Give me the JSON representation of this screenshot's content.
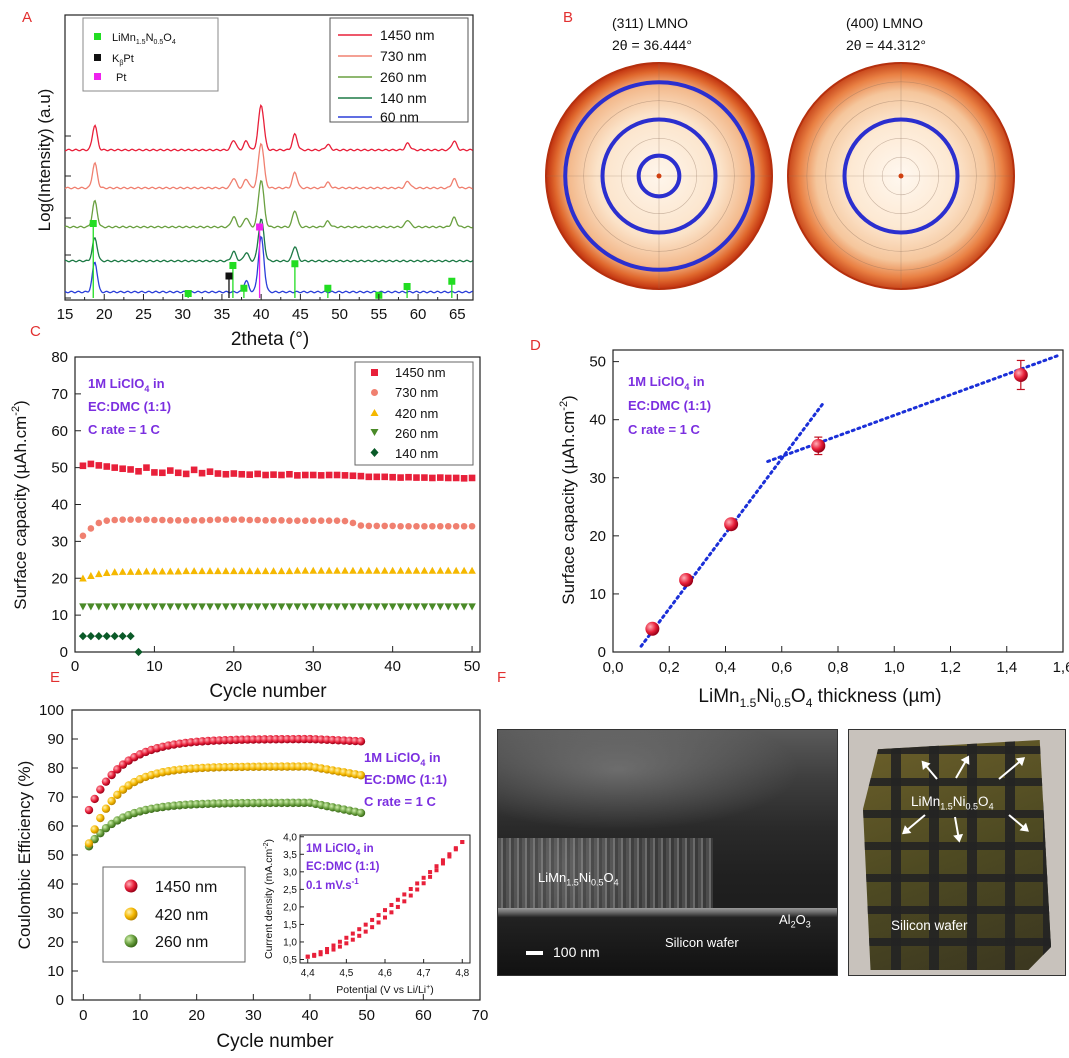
{
  "panels": {
    "a": "A",
    "b": "B",
    "c": "C",
    "d": "D",
    "e": "E",
    "f": "F"
  },
  "conditions": {
    "line1": "1M LiClO",
    "line1_sub": "4",
    "line1_tail": " in",
    "line2": "EC:DMC (1:1)",
    "line3": "C rate = 1 C",
    "scan_rate": "0.1 mV.s",
    "scan_rate_sup": "-1"
  },
  "colors": {
    "red": "#e8203a",
    "salmon": "#f08070",
    "olive": "#6aa040",
    "darkgreen": "#1e7a46",
    "blue": "#2b3fd9",
    "purple": "#7b2fe0",
    "green_marker": "#22dd22",
    "magenta": "#ee22ee",
    "yellow": "#f5b800"
  },
  "chart_data": [
    {
      "id": "A",
      "type": "line",
      "xlabel": "2theta (°)",
      "ylabel": "Log(Intensity) (a.u)",
      "xlim": [
        15,
        67
      ],
      "xticks": [
        "15",
        "20",
        "25",
        "30",
        "35",
        "40",
        "45",
        "50",
        "55",
        "60",
        "65"
      ],
      "series": [
        {
          "name": "1450 nm",
          "color": "#e8203a",
          "peaks_2theta": [
            18.8,
            36.5,
            38.1,
            40.0,
            44.3,
            48.5,
            58.7,
            64.6
          ]
        },
        {
          "name": "730 nm",
          "color": "#f08070",
          "peaks_2theta": [
            18.8,
            36.5,
            38.1,
            40.0,
            44.3,
            48.5,
            58.7,
            64.6
          ]
        },
        {
          "name": "260 nm",
          "color": "#6aa040",
          "peaks_2theta": [
            18.8,
            36.5,
            38.1,
            40.0,
            44.3,
            48.5,
            58.7,
            64.6
          ]
        },
        {
          "name": "140 nm",
          "color": "#1e7a46",
          "peaks_2theta": [
            18.8,
            36.5,
            38.1,
            40.0,
            44.3
          ]
        },
        {
          "name": "60 nm",
          "color": "#2b3fd9",
          "peaks_2theta": [
            18.8,
            38.1,
            40.0
          ]
        }
      ],
      "references": [
        {
          "name": "LiMn",
          "sub1": "1.5",
          "mid": "N",
          "sub2": "0.5",
          "tail": "O",
          "sub3": "4",
          "color": "#22dd22",
          "positions": [
            18.6,
            30.7,
            36.4,
            37.8,
            44.3,
            48.5,
            55.0,
            58.6,
            64.3
          ],
          "heights": [
            0.42,
            0.02,
            0.18,
            0.05,
            0.19,
            0.05,
            0.01,
            0.06,
            0.09
          ]
        },
        {
          "name": "K",
          "sub1": "β",
          "tail": "Pt",
          "color": "#111111",
          "positions": [
            35.9
          ],
          "heights": [
            0.12
          ]
        },
        {
          "name": "Pt",
          "color": "#ee22ee",
          "positions": [
            39.8
          ],
          "heights": [
            0.4
          ]
        }
      ]
    },
    {
      "id": "B",
      "type": "heatmap",
      "plots": [
        {
          "title": "(311) LMNO",
          "angle": "2θ = 36.444°",
          "rings": [
            0.18,
            0.5,
            0.83
          ]
        },
        {
          "title": "(400) LMNO",
          "angle": "2θ = 44.312°",
          "rings": [
            0.5
          ]
        }
      ]
    },
    {
      "id": "C",
      "type": "scatter",
      "xlabel": "Cycle number",
      "ylabel": "Surface capacity (µAh.cm",
      "ylabel_sup": "-2",
      "ylabel_tail": ")",
      "xlim": [
        0,
        51
      ],
      "ylim": [
        0,
        80
      ],
      "xticks": [
        "0",
        "10",
        "20",
        "30",
        "40",
        "50"
      ],
      "yticks": [
        "0",
        "10",
        "20",
        "30",
        "40",
        "50",
        "60",
        "70",
        "80"
      ],
      "series": [
        {
          "name": "1450 nm",
          "marker": "square",
          "color": "#e8203a",
          "values": [
            50.5,
            51.0,
            50.6,
            50.3,
            50.0,
            49.7,
            49.5,
            49.0,
            50.0,
            48.7,
            48.6,
            49.2,
            48.6,
            48.3,
            49.4,
            48.5,
            48.9,
            48.4,
            48.2,
            48.4,
            48.2,
            48.1,
            48.3,
            48.0,
            48.1,
            48.0,
            48.2,
            47.9,
            48.0,
            48.0,
            47.9,
            48.0,
            48.0,
            47.9,
            47.8,
            47.7,
            47.5,
            47.5,
            47.5,
            47.4,
            47.3,
            47.4,
            47.3,
            47.3,
            47.2,
            47.3,
            47.2,
            47.2,
            47.1,
            47.2
          ]
        },
        {
          "name": "730 nm",
          "marker": "circle",
          "color": "#f08070",
          "values": [
            31.5,
            33.5,
            35.0,
            35.6,
            35.8,
            35.9,
            35.9,
            35.9,
            35.9,
            35.8,
            35.8,
            35.7,
            35.7,
            35.7,
            35.7,
            35.7,
            35.8,
            35.9,
            35.9,
            35.9,
            35.9,
            35.8,
            35.8,
            35.7,
            35.7,
            35.7,
            35.6,
            35.6,
            35.6,
            35.6,
            35.6,
            35.6,
            35.6,
            35.5,
            35.0,
            34.3,
            34.2,
            34.2,
            34.2,
            34.2,
            34.1,
            34.1,
            34.1,
            34.1,
            34.1,
            34.1,
            34.1,
            34.1,
            34.1,
            34.1
          ]
        },
        {
          "name": "420 nm",
          "marker": "triangle-up",
          "color": "#f5b800",
          "values": [
            20.0,
            20.7,
            21.2,
            21.5,
            21.7,
            21.8,
            21.8,
            21.8,
            21.9,
            21.9,
            21.9,
            21.9,
            21.9,
            22.0,
            22.0,
            22.0,
            22.0,
            22.0,
            22.0,
            22.0,
            22.0,
            22.0,
            22.0,
            22.0,
            22.0,
            22.0,
            22.0,
            22.1,
            22.1,
            22.1,
            22.1,
            22.1,
            22.1,
            22.1,
            22.1,
            22.1,
            22.1,
            22.1,
            22.1,
            22.1,
            22.1,
            22.1,
            22.1,
            22.1,
            22.1,
            22.1,
            22.1,
            22.1,
            22.1,
            22.1
          ]
        },
        {
          "name": "260 nm",
          "marker": "triangle-down",
          "color": "#4a8a28",
          "values": [
            12.3,
            12.3,
            12.3,
            12.3,
            12.3,
            12.3,
            12.3,
            12.3,
            12.3,
            12.3,
            12.3,
            12.3,
            12.3,
            12.3,
            12.3,
            12.3,
            12.3,
            12.3,
            12.3,
            12.3,
            12.3,
            12.3,
            12.3,
            12.3,
            12.3,
            12.3,
            12.3,
            12.3,
            12.3,
            12.3,
            12.3,
            12.3,
            12.3,
            12.3,
            12.3,
            12.3,
            12.3,
            12.3,
            12.3,
            12.3,
            12.3,
            12.3,
            12.3,
            12.3,
            12.3,
            12.3,
            12.3,
            12.3,
            12.3,
            12.3
          ]
        },
        {
          "name": "140 nm",
          "marker": "diamond",
          "color": "#0a5a28",
          "values": [
            4.3,
            4.3,
            4.3,
            4.3,
            4.3,
            4.3,
            4.3,
            0.0
          ]
        }
      ]
    },
    {
      "id": "D",
      "type": "scatter",
      "xlabel": "LiMn",
      "xlabel_sub1": "1.5",
      "xlabel_mid": "Ni",
      "xlabel_sub2": "0.5",
      "xlabel_mid2": "O",
      "xlabel_sub3": "4",
      "xlabel_tail": " thickness (µm)",
      "ylabel": "Surface capacity (µAh.cm",
      "ylabel_sup": "-2",
      "ylabel_tail": ")",
      "xlim": [
        0,
        1.6
      ],
      "ylim": [
        0,
        52
      ],
      "xticks": [
        "0,0",
        "0,2",
        "0,4",
        "0,6",
        "0,8",
        "1,0",
        "1,2",
        "1,4",
        "1,6"
      ],
      "yticks": [
        "0",
        "10",
        "20",
        "30",
        "40",
        "50"
      ],
      "points": {
        "x": [
          0.14,
          0.26,
          0.42,
          0.73,
          1.45
        ],
        "y": [
          4.0,
          12.4,
          22.0,
          35.5,
          47.7
        ],
        "err": [
          0,
          0,
          0,
          1.5,
          2.5
        ]
      },
      "fits": [
        {
          "x": [
            0.1,
            0.75
          ],
          "y": [
            1.0,
            43.0
          ]
        },
        {
          "x": [
            0.55,
            1.58
          ],
          "y": [
            32.8,
            51.0
          ]
        }
      ]
    },
    {
      "id": "E",
      "type": "scatter",
      "xlabel": "Cycle number",
      "ylabel": "Coulombic Efficiency (%)",
      "xlim": [
        -2,
        70
      ],
      "ylim": [
        0,
        100
      ],
      "xticks": [
        "0",
        "10",
        "20",
        "30",
        "40",
        "50",
        "60",
        "70"
      ],
      "yticks": [
        "0",
        "10",
        "20",
        "30",
        "40",
        "50",
        "60",
        "70",
        "80",
        "90",
        "100"
      ],
      "series": [
        {
          "name": "1450 nm",
          "color": "#e8203a",
          "asymptote": 90,
          "start": 65.5,
          "rate": 0.17,
          "tail_drop": 0.8
        },
        {
          "name": "420 nm",
          "color": "#f5b800",
          "asymptote": 80.5,
          "start": 54,
          "rate": 0.2,
          "tail_drop": 3.0
        },
        {
          "name": "260 nm",
          "color": "#6aa040",
          "asymptote": 68,
          "start": 53,
          "rate": 0.18,
          "tail_drop": 3.5
        }
      ],
      "inset": {
        "xlabel": "Potential (V vs Li/Li",
        "xlabel_sup": "+",
        "xlabel_tail": ")",
        "ylabel": "Current density (mA.cm",
        "ylabel_sup": "-2",
        "ylabel_tail": ")",
        "xlim": [
          4.38,
          4.82
        ],
        "ylim": [
          0.4,
          4.05
        ],
        "xticks": [
          "4,4",
          "4,5",
          "4,6",
          "4,7",
          "4,8"
        ],
        "yticks": [
          "0,5",
          "1,0",
          "1,5",
          "2,0",
          "2,5",
          "3,0",
          "3,5",
          "4,0"
        ],
        "x": [
          4.4,
          4.8
        ],
        "y_start": 0.58,
        "y_end": 3.85
      }
    }
  ],
  "photos": {
    "sem": {
      "film_label": "LiMn",
      "film_sub1": "1.5",
      "film_mid": "Ni",
      "film_sub2": "0.5",
      "film_mid2": "O",
      "film_sub3": "4",
      "substrate": "Silicon wafer",
      "alumina": "Al",
      "alumina_sub": "2",
      "alumina_tail": "O",
      "alumina_sub2": "3",
      "scale_bar": "100 nm"
    },
    "wafer": {
      "film_label": "LiMn",
      "film_sub1": "1.5",
      "film_mid": "Ni",
      "film_sub2": "0.5",
      "film_mid2": "O",
      "film_sub3": "4",
      "substrate": "Silicon wafer"
    }
  }
}
